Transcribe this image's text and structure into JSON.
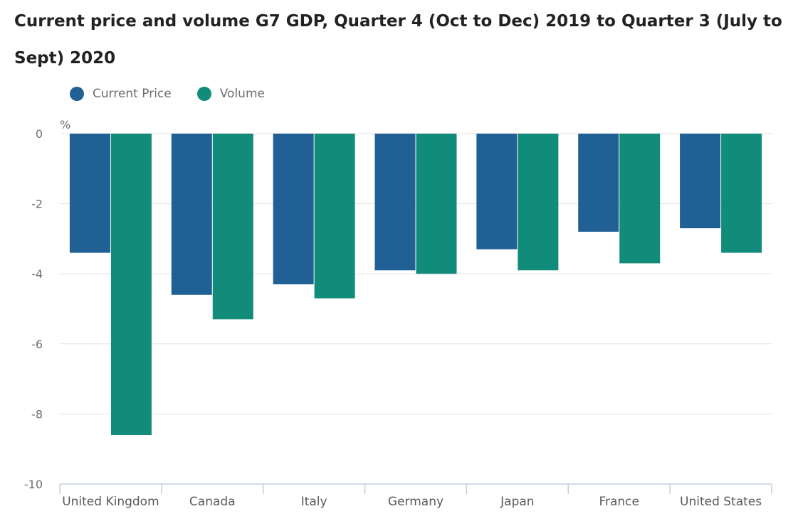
{
  "chart_data": {
    "type": "bar",
    "title": "Current price and volume G7 GDP, Quarter 4 (Oct to Dec) 2019 to Quarter 3 (July to Sept) 2020",
    "ylabel": "%",
    "xlabel": "",
    "ylim": [
      -10,
      0
    ],
    "yticks": [
      0,
      -2,
      -4,
      -6,
      -8,
      -10
    ],
    "grid": true,
    "legend_position": "top-left",
    "categories": [
      "United Kingdom",
      "Canada",
      "Italy",
      "Germany",
      "Japan",
      "France",
      "United States"
    ],
    "series": [
      {
        "name": "Current Price",
        "color": "#206095",
        "values": [
          -3.4,
          -4.6,
          -4.3,
          -3.9,
          -3.3,
          -2.8,
          -2.7
        ]
      },
      {
        "name": "Volume",
        "color": "#118c7b",
        "values": [
          -8.6,
          -5.3,
          -4.7,
          -4.0,
          -3.9,
          -3.7,
          -3.4
        ]
      }
    ]
  }
}
